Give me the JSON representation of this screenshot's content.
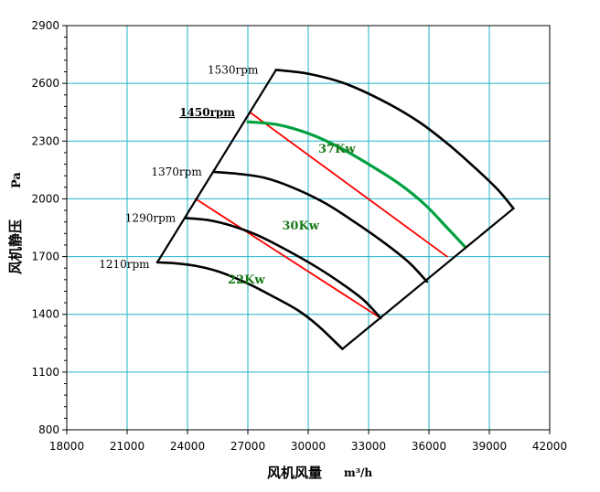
{
  "chart_data": {
    "type": "line",
    "title": "",
    "xlabel": "风机风量",
    "xlabel_unit": "m³/h",
    "ylabel": "风机静压",
    "ylabel_unit": "Pa",
    "xlim": [
      18000,
      42000
    ],
    "ylim": [
      800,
      2900
    ],
    "xticks": [
      18000,
      21000,
      24000,
      27000,
      30000,
      33000,
      36000,
      39000,
      42000
    ],
    "yticks": [
      800,
      1100,
      1400,
      1700,
      2000,
      2300,
      2600,
      2900
    ],
    "grid": true,
    "grid_color": "#20b2c8",
    "rpm_curves": [
      {
        "label": "1210rpm",
        "label_color": "#000000",
        "points": [
          [
            22500,
            1670
          ],
          [
            23400,
            1665
          ],
          [
            24500,
            1650
          ],
          [
            25600,
            1620
          ],
          [
            27000,
            1560
          ],
          [
            28300,
            1490
          ],
          [
            29500,
            1420
          ],
          [
            30500,
            1340
          ],
          [
            31700,
            1220
          ]
        ]
      },
      {
        "label": "1290rpm",
        "label_color": "#000000",
        "points": [
          [
            23900,
            1900
          ],
          [
            25000,
            1890
          ],
          [
            26200,
            1860
          ],
          [
            27500,
            1810
          ],
          [
            29000,
            1730
          ],
          [
            30500,
            1640
          ],
          [
            31800,
            1550
          ],
          [
            32800,
            1470
          ],
          [
            33600,
            1380
          ]
        ]
      },
      {
        "label": "1370rpm",
        "label_color": "#000000",
        "points": [
          [
            25300,
            2140
          ],
          [
            26500,
            2130
          ],
          [
            27800,
            2110
          ],
          [
            29200,
            2060
          ],
          [
            30800,
            1980
          ],
          [
            32300,
            1880
          ],
          [
            33800,
            1770
          ],
          [
            35000,
            1670
          ],
          [
            35900,
            1570
          ]
        ]
      },
      {
        "label": "1450rpm",
        "label_color": "#ff0000",
        "points": [
          [
            27000,
            2400
          ],
          [
            28500,
            2385
          ],
          [
            30000,
            2340
          ],
          [
            31500,
            2270
          ],
          [
            33000,
            2180
          ],
          [
            34500,
            2080
          ],
          [
            35800,
            1970
          ],
          [
            36900,
            1850
          ],
          [
            37800,
            1750
          ]
        ]
      },
      {
        "label": "1530rpm",
        "label_color": "#000000",
        "points": [
          [
            28400,
            2670
          ],
          [
            30000,
            2650
          ],
          [
            31800,
            2600
          ],
          [
            33700,
            2510
          ],
          [
            35500,
            2400
          ],
          [
            37000,
            2280
          ],
          [
            38300,
            2160
          ],
          [
            39400,
            2050
          ],
          [
            40200,
            1950
          ]
        ]
      }
    ],
    "boundaries": [
      {
        "name": "left",
        "color": "#000000",
        "points": [
          [
            22500,
            1670
          ],
          [
            28400,
            2670
          ]
        ]
      },
      {
        "name": "right",
        "color": "#000000",
        "points": [
          [
            31700,
            1220
          ],
          [
            40200,
            1950
          ]
        ]
      }
    ],
    "power_curves": [
      {
        "label": "22Kw",
        "color": "#ff0000",
        "points": [
          [
            24400,
            2000
          ],
          [
            33600,
            1380
          ]
        ],
        "label_at": [
          26000,
          1560
        ]
      },
      {
        "label": "30Kw",
        "color": "#ff0000",
        "points": [
          [
            27100,
            2450
          ],
          [
            36900,
            1700
          ]
        ],
        "label_at": [
          28700,
          1840
        ]
      },
      {
        "label": "37Kw",
        "color": "#00a040",
        "points": [
          [
            27000,
            2400
          ],
          [
            28500,
            2385
          ],
          [
            30000,
            2340
          ],
          [
            31500,
            2270
          ],
          [
            33000,
            2180
          ],
          [
            34500,
            2080
          ],
          [
            35800,
            1970
          ],
          [
            36900,
            1850
          ],
          [
            37800,
            1750
          ]
        ],
        "label_at": [
          30500,
          2240
        ]
      }
    ],
    "rpm_label_positions": {
      "1210rpm": [
        19600,
        1640
      ],
      "1290rpm": [
        20900,
        1880
      ],
      "1370rpm": [
        22200,
        2120
      ],
      "1450rpm": [
        23600,
        2430
      ],
      "1530rpm": [
        25000,
        2650
      ]
    }
  }
}
